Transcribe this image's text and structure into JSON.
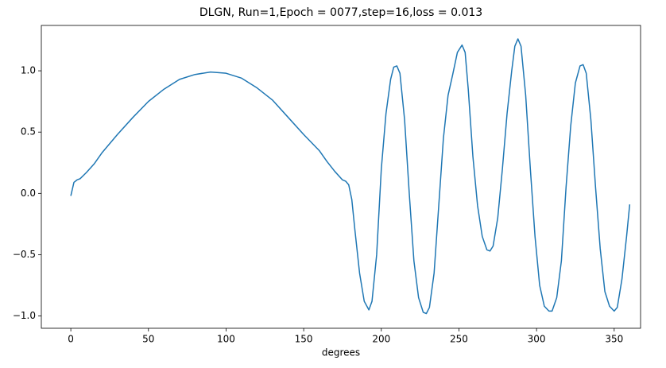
{
  "chart_data": {
    "type": "line",
    "title": "DLGN, Run=1,Epoch = 0077,step=16,loss = 0.013",
    "xlabel": "degrees",
    "x": [
      0,
      2,
      4,
      6,
      10,
      15,
      20,
      30,
      40,
      50,
      60,
      70,
      80,
      90,
      100,
      110,
      120,
      130,
      140,
      150,
      160,
      165,
      170,
      175,
      177,
      179,
      181,
      183,
      186,
      189,
      192,
      194,
      197,
      200,
      203,
      206,
      208,
      210,
      212,
      215,
      218,
      221,
      224,
      227,
      229,
      231,
      234,
      237,
      240,
      243,
      246,
      249,
      252,
      254,
      256,
      259,
      262,
      265,
      268,
      270,
      272,
      275,
      278,
      281,
      284,
      286,
      288,
      290,
      293,
      296,
      299,
      302,
      305,
      308,
      310,
      313,
      316,
      319,
      322,
      325,
      328,
      330,
      332,
      335,
      338,
      341,
      344,
      347,
      350,
      352,
      355,
      358,
      360
    ],
    "series": [
      {
        "color": "#1f77b4",
        "values": [
          -0.02,
          0.09,
          0.11,
          0.12,
          0.17,
          0.24,
          0.33,
          0.48,
          0.62,
          0.75,
          0.85,
          0.93,
          0.97,
          0.99,
          0.98,
          0.94,
          0.86,
          0.76,
          0.62,
          0.48,
          0.35,
          0.26,
          0.18,
          0.11,
          0.1,
          0.07,
          -0.05,
          -0.3,
          -0.65,
          -0.88,
          -0.95,
          -0.88,
          -0.5,
          0.2,
          0.65,
          0.93,
          1.03,
          1.04,
          0.98,
          0.6,
          0.0,
          -0.55,
          -0.85,
          -0.97,
          -0.98,
          -0.93,
          -0.65,
          -0.1,
          0.45,
          0.8,
          0.97,
          1.15,
          1.21,
          1.15,
          0.85,
          0.3,
          -0.1,
          -0.35,
          -0.46,
          -0.47,
          -0.43,
          -0.2,
          0.2,
          0.65,
          1.0,
          1.2,
          1.26,
          1.2,
          0.8,
          0.2,
          -0.35,
          -0.75,
          -0.92,
          -0.96,
          -0.96,
          -0.85,
          -0.55,
          0.05,
          0.55,
          0.9,
          1.04,
          1.05,
          0.98,
          0.6,
          0.05,
          -0.45,
          -0.8,
          -0.92,
          -0.96,
          -0.93,
          -0.7,
          -0.35,
          -0.09
        ]
      }
    ],
    "xlim": [
      -19,
      367
    ],
    "ylim": [
      -1.1,
      1.37
    ],
    "xticks": [
      0,
      50,
      100,
      150,
      200,
      250,
      300,
      350
    ],
    "yticks": [
      {
        "value": -1.0,
        "label": "−1.0"
      },
      {
        "value": -0.5,
        "label": "−0.5"
      },
      {
        "value": 0.0,
        "label": "0.0"
      },
      {
        "value": 0.5,
        "label": "0.5"
      },
      {
        "value": 1.0,
        "label": "1.0"
      }
    ]
  }
}
